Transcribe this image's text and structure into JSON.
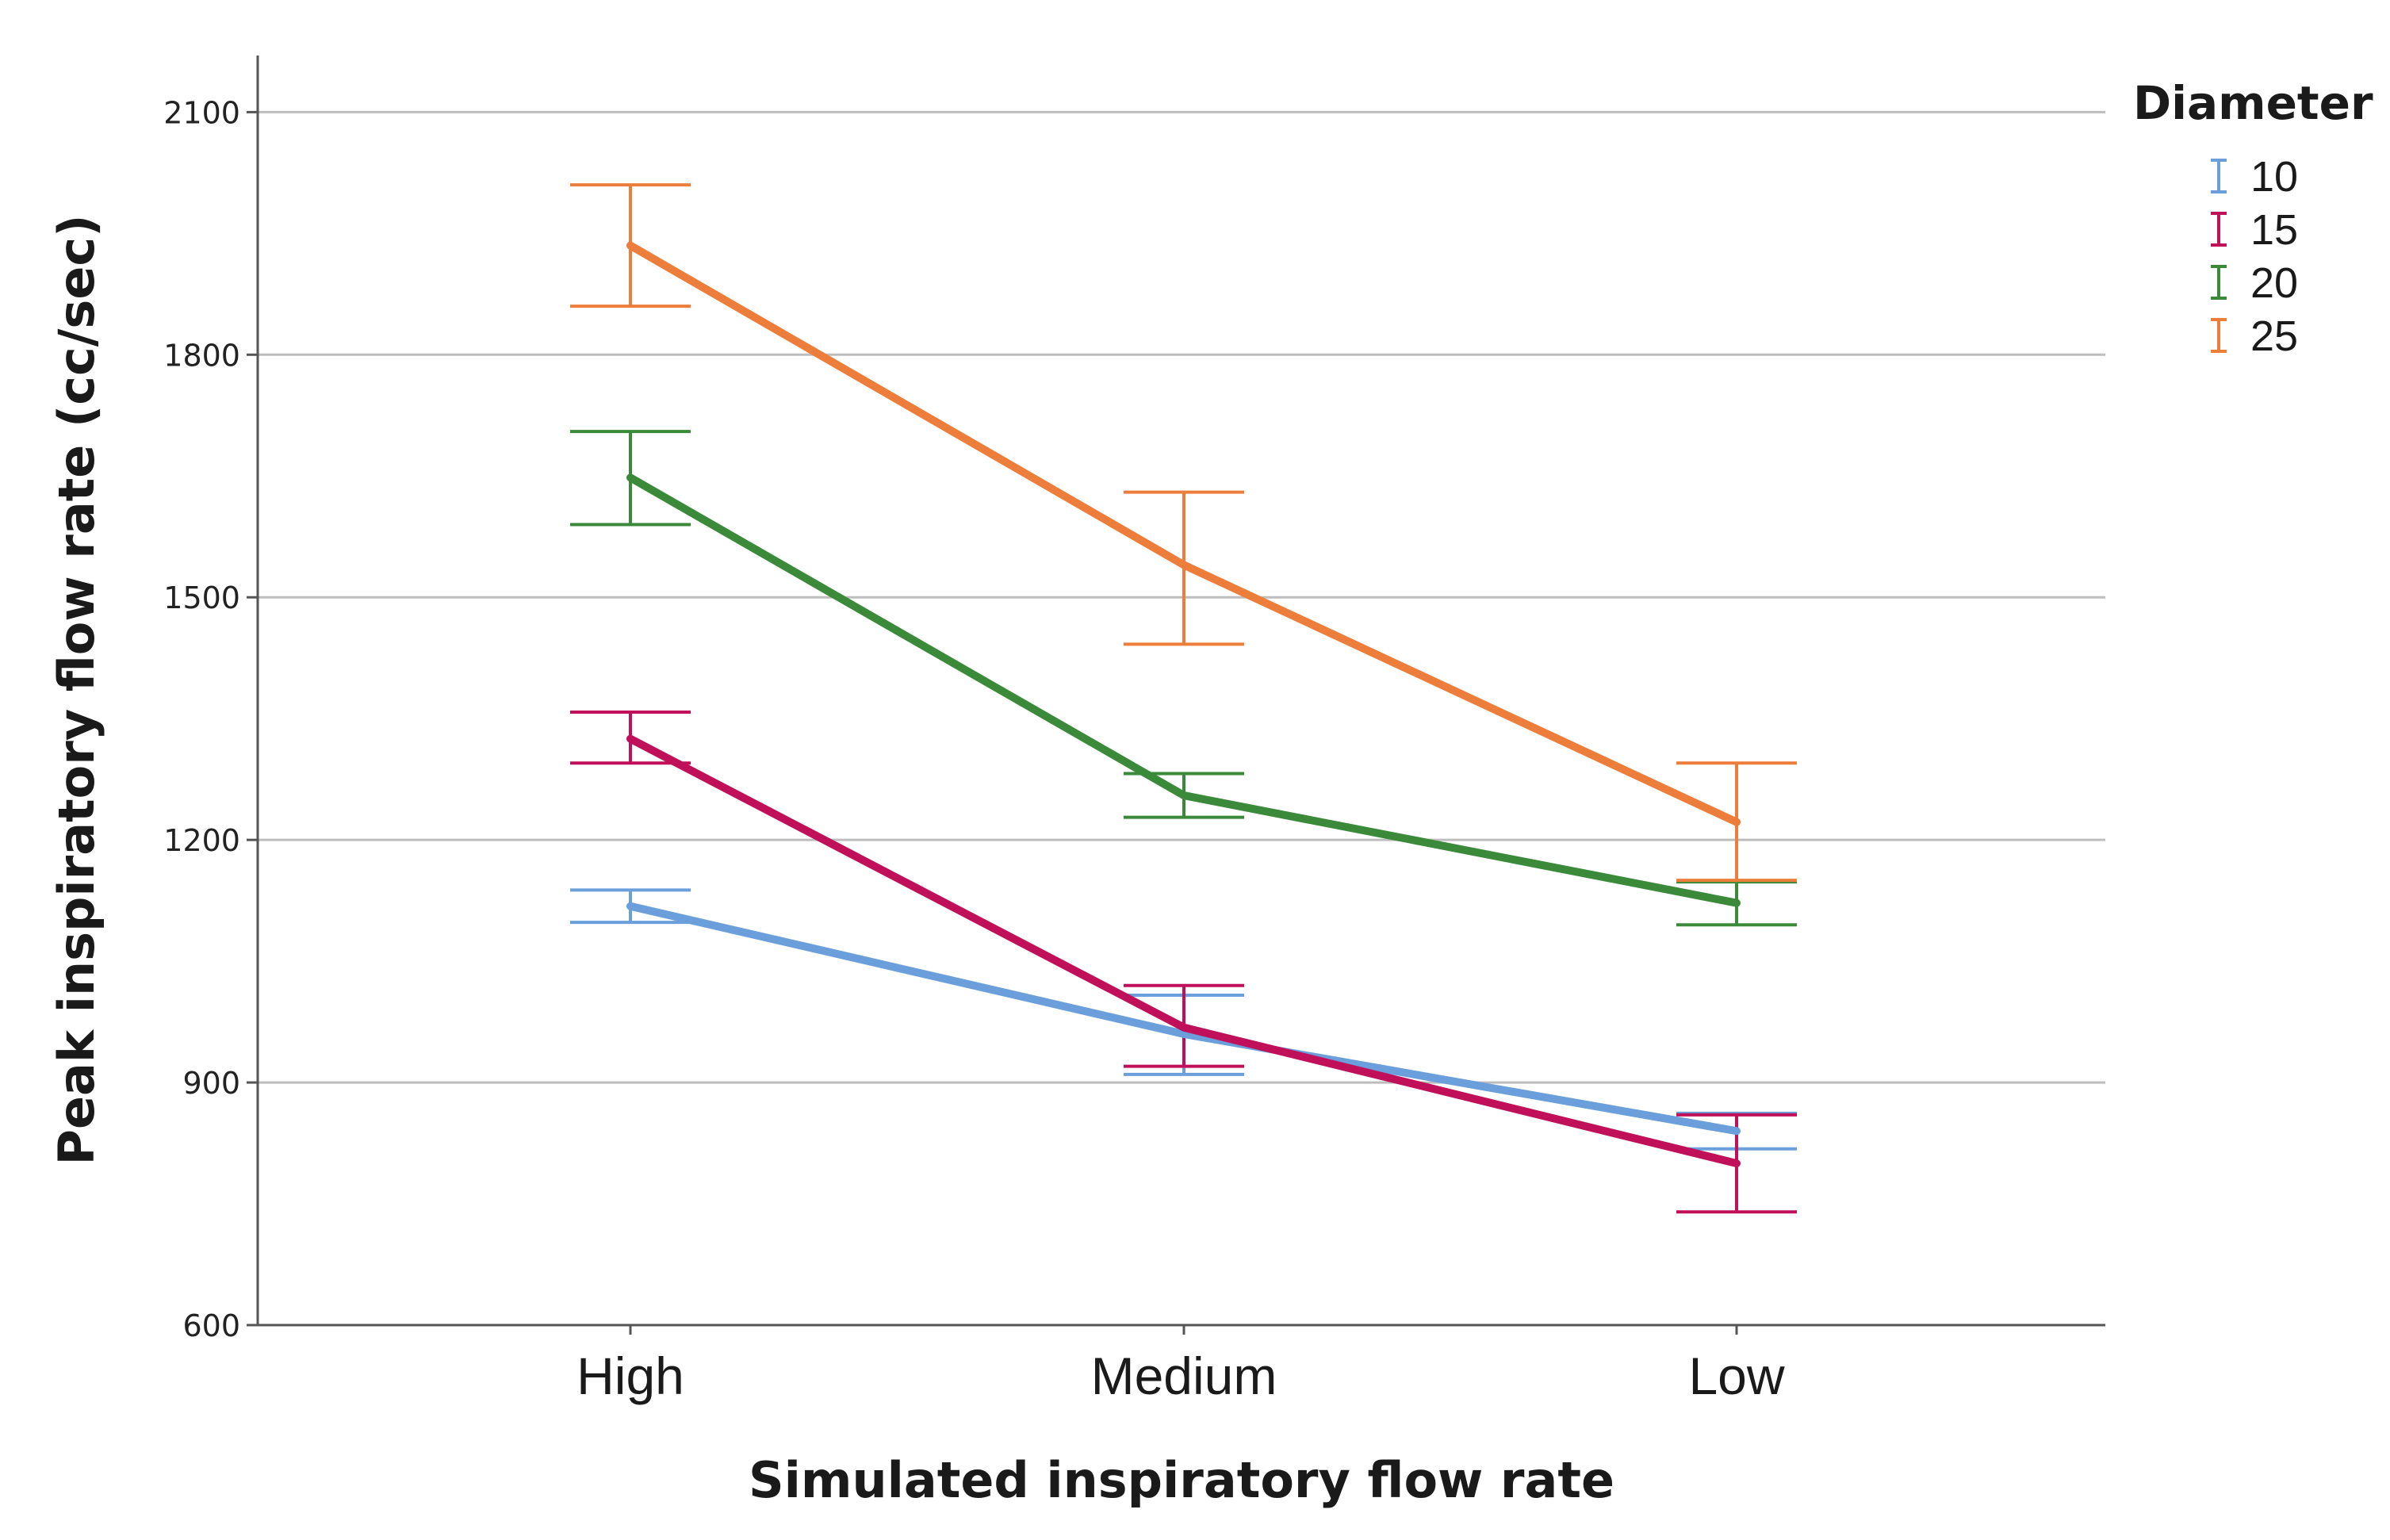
{
  "chart_data": {
    "type": "line",
    "xlabel": "Simulated inspiratory flow rate",
    "ylabel": "Peak inspiratory flow rate (cc/sec)",
    "categories": [
      "High",
      "Medium",
      "Low"
    ],
    "ylim": [
      600,
      2170
    ],
    "yticks": [
      600,
      900,
      1200,
      1500,
      1800,
      2100
    ],
    "grid": true,
    "error_bars": true,
    "legend": {
      "title": "Diameter",
      "position": "top-right"
    },
    "series": [
      {
        "name": "10",
        "color": "#6a9fdc",
        "values": [
          1118,
          960,
          840
        ],
        "error_low": [
          1098,
          910,
          818
        ],
        "error_high": [
          1138,
          1008,
          862
        ]
      },
      {
        "name": "15",
        "color": "#c0105a",
        "values": [
          1325,
          968,
          800
        ],
        "error_low": [
          1295,
          920,
          740
        ],
        "error_high": [
          1358,
          1020,
          860
        ]
      },
      {
        "name": "20",
        "color": "#3a8a3a",
        "values": [
          1648,
          1255,
          1122
        ],
        "error_low": [
          1590,
          1228,
          1095
        ],
        "error_high": [
          1705,
          1282,
          1148
        ]
      },
      {
        "name": "25",
        "color": "#ec7d3a",
        "values": [
          1935,
          1540,
          1222
        ],
        "error_low": [
          1860,
          1442,
          1150
        ],
        "error_high": [
          2010,
          1630,
          1295
        ]
      }
    ]
  }
}
